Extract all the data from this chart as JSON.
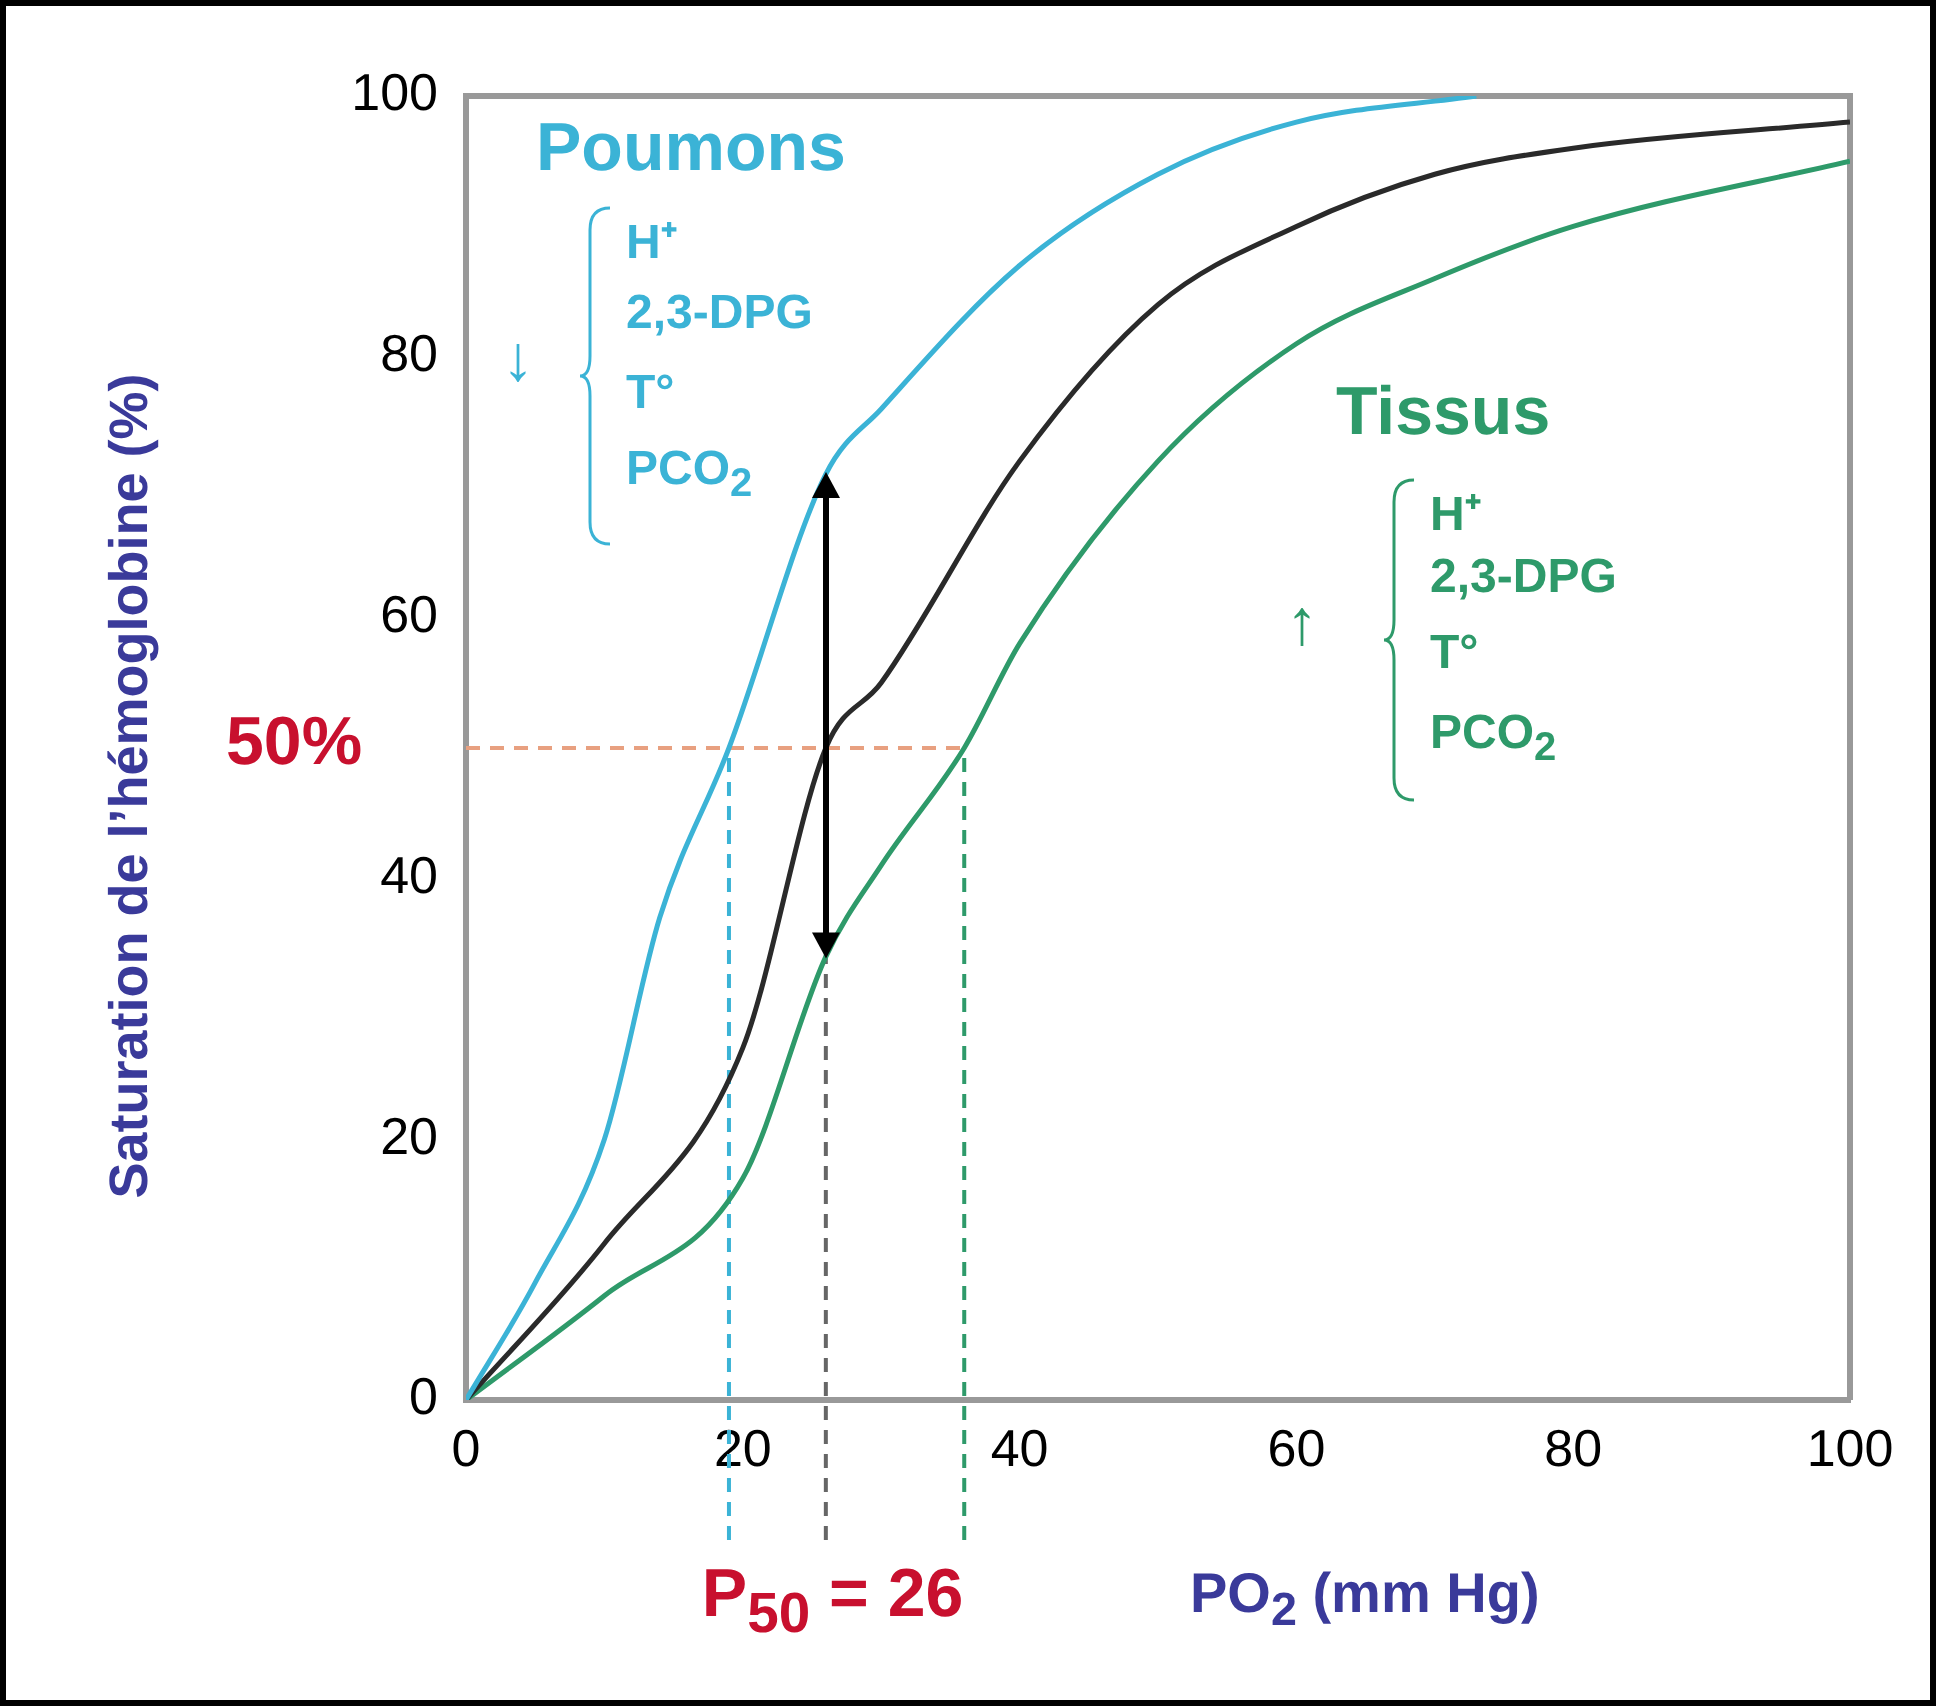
{
  "chart_data": {
    "type": "line",
    "xlabel": "PO$_{2}$ (mm Hg)",
    "ylabel": "Saturation de l’hémoglobine (%)",
    "xlim": [
      0,
      100
    ],
    "ylim": [
      0,
      100
    ],
    "xticks": [
      0,
      20,
      40,
      60,
      80,
      100
    ],
    "yticks": [
      0,
      20,
      40,
      60,
      80,
      100
    ],
    "grid": false,
    "legend": false,
    "marker": "none",
    "line_style": "solid",
    "series": [
      {
        "name": "Poumons",
        "color": "#3bb3d6",
        "x": [
          0,
          5,
          10,
          14,
          19,
          26,
          30,
          40,
          50,
          60,
          73
        ],
        "values": [
          0,
          9,
          20,
          37,
          50,
          71,
          76,
          87,
          94,
          98,
          100
        ]
      },
      {
        "color": "#2a2a2a",
        "x": [
          0,
          10,
          20,
          26,
          30,
          40,
          50,
          60,
          70,
          80,
          100
        ],
        "values": [
          0,
          12,
          27,
          50,
          55,
          72,
          84,
          90,
          94,
          96,
          98
        ]
      },
      {
        "name": "Tissus",
        "color": "#2e9a6a",
        "x": [
          0,
          10,
          20,
          26,
          30,
          36,
          40,
          50,
          60,
          70,
          80,
          100
        ],
        "values": [
          0,
          8,
          17,
          34,
          41,
          50,
          58,
          72,
          81,
          86,
          90,
          95
        ]
      }
    ],
    "ref_lines": [
      {
        "axis": "y",
        "value": 50,
        "label": "50%",
        "color": "#e8a080",
        "line_style": "dashed"
      },
      {
        "axis": "x",
        "value": 19,
        "color": "#3bb3d6",
        "line_style": "dashed"
      },
      {
        "axis": "x",
        "value": 26,
        "label": "P$_{50}$ = 26",
        "color": "#666666",
        "line_style": "dashed"
      },
      {
        "axis": "x",
        "value": 36,
        "color": "#2e9a6a",
        "line_style": "dashed"
      }
    ],
    "annotations": [
      "↓",
      "H⁺",
      "2,3-DPG",
      "T°",
      "PCO$_{2}$",
      "↑",
      "H⁺",
      "2,3-DPG",
      "T°",
      "PCO$_{2}$"
    ]
  }
}
